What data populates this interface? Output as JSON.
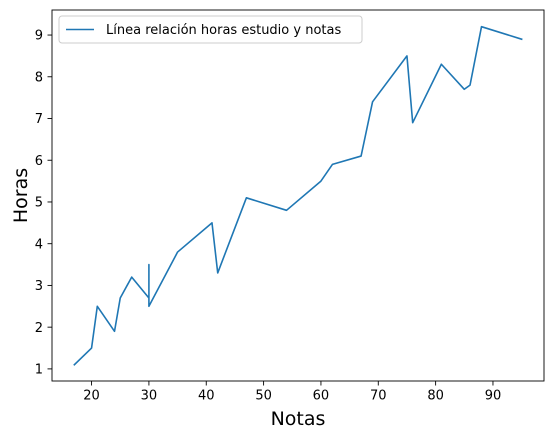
{
  "chart_data": {
    "type": "line",
    "title": "",
    "xlabel": "Notas",
    "ylabel": "Horas",
    "xlim": [
      13.1,
      98.9
    ],
    "ylim": [
      0.71,
      9.6
    ],
    "xticks": [
      20,
      30,
      40,
      50,
      60,
      70,
      80,
      90
    ],
    "yticks": [
      1,
      2,
      3,
      4,
      5,
      6,
      7,
      8,
      9
    ],
    "grid": false,
    "legend_position": "top-left",
    "series": [
      {
        "name": "Línea relación horas estudio y notas",
        "color": "#1f77b4",
        "x": [
          17,
          20,
          21,
          24,
          25,
          27,
          30,
          30,
          30,
          35,
          41,
          42,
          47,
          54,
          60,
          62,
          67,
          69,
          75,
          76,
          81,
          85,
          86,
          88,
          95
        ],
        "y": [
          1.1,
          1.5,
          2.5,
          1.9,
          2.7,
          3.2,
          2.7,
          3.5,
          2.5,
          3.8,
          4.5,
          3.3,
          5.1,
          4.8,
          5.5,
          5.9,
          6.1,
          7.4,
          8.5,
          6.9,
          8.3,
          7.7,
          7.8,
          9.2,
          8.9
        ]
      }
    ]
  }
}
